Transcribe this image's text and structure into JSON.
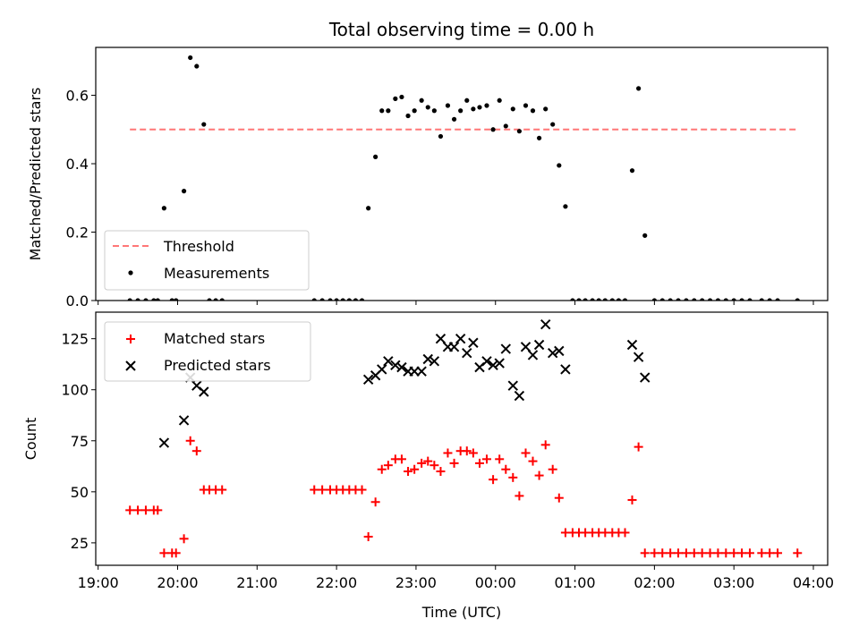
{
  "figure": {
    "title": "Total observing time = 0.00 h"
  },
  "chart_data": [
    {
      "type": "scatter",
      "title": "Total observing time = 0.00 h",
      "ylabel": "Matched/Predicted stars",
      "xlabel": "",
      "xlim": [
        18.97,
        28.18
      ],
      "ylim": [
        0,
        0.74
      ],
      "yticks": [
        0.0,
        0.2,
        0.4,
        0.6
      ],
      "ytick_labels": [
        "0.0",
        "0.2",
        "0.4",
        "0.6"
      ],
      "legend": "lower-left",
      "grid": false,
      "threshold": {
        "name": "Threshold",
        "value": 0.5,
        "x_start": 19.4,
        "x_end": 27.8,
        "color": "#ff7777"
      },
      "series": [
        {
          "name": "Measurements",
          "color": "#000000",
          "points": [
            [
              19.4,
              0
            ],
            [
              19.5,
              0
            ],
            [
              19.6,
              0
            ],
            [
              19.7,
              0
            ],
            [
              19.75,
              0
            ],
            [
              19.83,
              0.27
            ],
            [
              19.93,
              0
            ],
            [
              19.98,
              0
            ],
            [
              20.08,
              0.32
            ],
            [
              20.16,
              0.71
            ],
            [
              20.24,
              0.685
            ],
            [
              20.33,
              0.515
            ],
            [
              20.4,
              0
            ],
            [
              20.48,
              0
            ],
            [
              20.56,
              0
            ],
            [
              21.72,
              0
            ],
            [
              21.82,
              0
            ],
            [
              21.92,
              0
            ],
            [
              22.0,
              0
            ],
            [
              22.08,
              0
            ],
            [
              22.16,
              0
            ],
            [
              22.24,
              0
            ],
            [
              22.32,
              0
            ],
            [
              22.4,
              0.27
            ],
            [
              22.49,
              0.42
            ],
            [
              22.57,
              0.555
            ],
            [
              22.65,
              0.555
            ],
            [
              22.74,
              0.59
            ],
            [
              22.82,
              0.595
            ],
            [
              22.9,
              0.54
            ],
            [
              22.98,
              0.555
            ],
            [
              23.07,
              0.585
            ],
            [
              23.15,
              0.565
            ],
            [
              23.23,
              0.555
            ],
            [
              23.31,
              0.48
            ],
            [
              23.4,
              0.57
            ],
            [
              23.48,
              0.53
            ],
            [
              23.56,
              0.555
            ],
            [
              23.64,
              0.585
            ],
            [
              23.72,
              0.56
            ],
            [
              23.8,
              0.565
            ],
            [
              23.89,
              0.57
            ],
            [
              23.97,
              0.5
            ],
            [
              24.05,
              0.585
            ],
            [
              24.13,
              0.51
            ],
            [
              24.22,
              0.56
            ],
            [
              24.3,
              0.495
            ],
            [
              24.38,
              0.57
            ],
            [
              24.47,
              0.555
            ],
            [
              24.55,
              0.475
            ],
            [
              24.63,
              0.56
            ],
            [
              24.72,
              0.515
            ],
            [
              24.8,
              0.395
            ],
            [
              24.88,
              0.275
            ],
            [
              24.97,
              0
            ],
            [
              25.05,
              0
            ],
            [
              25.13,
              0
            ],
            [
              25.22,
              0
            ],
            [
              25.3,
              0
            ],
            [
              25.38,
              0
            ],
            [
              25.47,
              0
            ],
            [
              25.55,
              0
            ],
            [
              25.63,
              0
            ],
            [
              25.72,
              0.38
            ],
            [
              25.8,
              0.62
            ],
            [
              25.88,
              0.19
            ],
            [
              26.0,
              0
            ],
            [
              26.1,
              0
            ],
            [
              26.2,
              0
            ],
            [
              26.3,
              0
            ],
            [
              26.4,
              0
            ],
            [
              26.5,
              0
            ],
            [
              26.6,
              0
            ],
            [
              26.7,
              0
            ],
            [
              26.8,
              0
            ],
            [
              26.9,
              0
            ],
            [
              27.0,
              0
            ],
            [
              27.1,
              0
            ],
            [
              27.2,
              0
            ],
            [
              27.35,
              0
            ],
            [
              27.45,
              0
            ],
            [
              27.55,
              0
            ],
            [
              27.8,
              0
            ]
          ]
        }
      ]
    },
    {
      "type": "scatter",
      "title": "",
      "ylabel": "Count",
      "xlabel": "Time (UTC)",
      "xlim": [
        18.97,
        28.18
      ],
      "ylim": [
        14,
        138
      ],
      "yticks": [
        25,
        50,
        75,
        100,
        125
      ],
      "ytick_labels": [
        "25",
        "50",
        "75",
        "100",
        "125"
      ],
      "xticks": [
        19,
        20,
        21,
        22,
        23,
        24,
        25,
        26,
        27,
        28
      ],
      "xtick_labels": [
        "19:00",
        "20:00",
        "21:00",
        "22:00",
        "23:00",
        "00:00",
        "01:00",
        "02:00",
        "03:00",
        "04:00"
      ],
      "legend": "upper-left",
      "grid": false,
      "series": [
        {
          "name": "Matched stars",
          "marker": "plus",
          "color": "#ff0000",
          "points": [
            [
              19.4,
              41
            ],
            [
              19.5,
              41
            ],
            [
              19.6,
              41
            ],
            [
              19.7,
              41
            ],
            [
              19.75,
              41
            ],
            [
              19.83,
              20
            ],
            [
              19.93,
              20
            ],
            [
              19.98,
              20
            ],
            [
              20.08,
              27
            ],
            [
              20.16,
              75
            ],
            [
              20.24,
              70
            ],
            [
              20.33,
              51
            ],
            [
              20.4,
              51
            ],
            [
              20.48,
              51
            ],
            [
              20.56,
              51
            ],
            [
              21.72,
              51
            ],
            [
              21.82,
              51
            ],
            [
              21.92,
              51
            ],
            [
              22.0,
              51
            ],
            [
              22.08,
              51
            ],
            [
              22.16,
              51
            ],
            [
              22.24,
              51
            ],
            [
              22.32,
              51
            ],
            [
              22.4,
              28
            ],
            [
              22.49,
              45
            ],
            [
              22.57,
              61
            ],
            [
              22.65,
              63
            ],
            [
              22.74,
              66
            ],
            [
              22.82,
              66
            ],
            [
              22.9,
              60
            ],
            [
              22.98,
              61
            ],
            [
              23.07,
              64
            ],
            [
              23.15,
              65
            ],
            [
              23.23,
              63
            ],
            [
              23.31,
              60
            ],
            [
              23.4,
              69
            ],
            [
              23.48,
              64
            ],
            [
              23.56,
              70
            ],
            [
              23.64,
              70
            ],
            [
              23.72,
              69
            ],
            [
              23.8,
              64
            ],
            [
              23.89,
              66
            ],
            [
              23.97,
              56
            ],
            [
              24.05,
              66
            ],
            [
              24.13,
              61
            ],
            [
              24.22,
              57
            ],
            [
              24.3,
              48
            ],
            [
              24.38,
              69
            ],
            [
              24.47,
              65
            ],
            [
              24.55,
              58
            ],
            [
              24.63,
              73
            ],
            [
              24.72,
              61
            ],
            [
              24.8,
              47
            ],
            [
              24.88,
              30
            ],
            [
              24.97,
              30
            ],
            [
              25.05,
              30
            ],
            [
              25.13,
              30
            ],
            [
              25.22,
              30
            ],
            [
              25.3,
              30
            ],
            [
              25.38,
              30
            ],
            [
              25.47,
              30
            ],
            [
              25.55,
              30
            ],
            [
              25.63,
              30
            ],
            [
              25.72,
              46
            ],
            [
              25.8,
              72
            ],
            [
              25.88,
              20
            ],
            [
              26.0,
              20
            ],
            [
              26.1,
              20
            ],
            [
              26.2,
              20
            ],
            [
              26.3,
              20
            ],
            [
              26.4,
              20
            ],
            [
              26.5,
              20
            ],
            [
              26.6,
              20
            ],
            [
              26.7,
              20
            ],
            [
              26.8,
              20
            ],
            [
              26.9,
              20
            ],
            [
              27.0,
              20
            ],
            [
              27.1,
              20
            ],
            [
              27.2,
              20
            ],
            [
              27.35,
              20
            ],
            [
              27.45,
              20
            ],
            [
              27.55,
              20
            ],
            [
              27.8,
              20
            ]
          ]
        },
        {
          "name": "Predicted stars",
          "marker": "x",
          "color": "#000000",
          "points": [
            [
              19.83,
              74
            ],
            [
              20.08,
              85
            ],
            [
              20.16,
              106
            ],
            [
              20.24,
              102
            ],
            [
              20.33,
              99
            ],
            [
              22.4,
              105
            ],
            [
              22.49,
              107
            ],
            [
              22.57,
              110
            ],
            [
              22.65,
              114
            ],
            [
              22.74,
              112
            ],
            [
              22.82,
              111
            ],
            [
              22.9,
              109
            ],
            [
              22.98,
              109
            ],
            [
              23.07,
              109
            ],
            [
              23.15,
              115
            ],
            [
              23.23,
              114
            ],
            [
              23.31,
              125
            ],
            [
              23.4,
              121
            ],
            [
              23.48,
              121
            ],
            [
              23.56,
              125
            ],
            [
              23.64,
              118
            ],
            [
              23.72,
              123
            ],
            [
              23.8,
              111
            ],
            [
              23.89,
              114
            ],
            [
              23.97,
              112
            ],
            [
              24.05,
              113
            ],
            [
              24.13,
              120
            ],
            [
              24.22,
              102
            ],
            [
              24.3,
              97
            ],
            [
              24.38,
              121
            ],
            [
              24.47,
              117
            ],
            [
              24.55,
              122
            ],
            [
              24.63,
              132
            ],
            [
              24.72,
              118
            ],
            [
              24.8,
              119
            ],
            [
              24.88,
              110
            ],
            [
              25.72,
              122
            ],
            [
              25.8,
              116
            ],
            [
              25.88,
              106
            ]
          ]
        }
      ]
    }
  ]
}
